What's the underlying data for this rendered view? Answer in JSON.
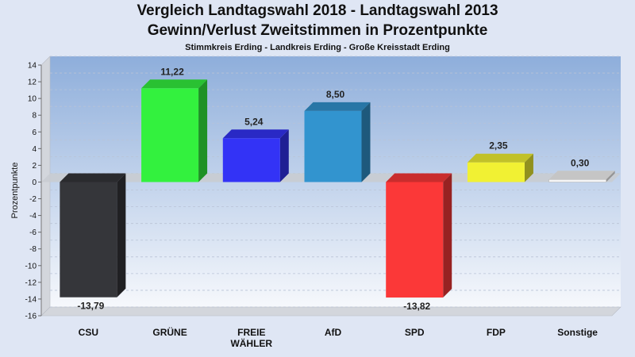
{
  "chart_data": {
    "type": "bar",
    "title": "Vergleich Landtagswahl 2018 - Landtagswahl 2013",
    "title2": "Gewinn/Verlust Zweitstimmen in Prozentpunkte",
    "subtitle": "Stimmkreis Erding - Landkreis Erding - Große Kreisstadt Erding",
    "xlabel": "",
    "ylabel": "Prozentpunkte",
    "ylim": [
      -16,
      14
    ],
    "yticks": [
      14,
      12,
      10,
      8,
      6,
      4,
      2,
      0,
      -2,
      -4,
      -6,
      -8,
      -10,
      -12,
      -14,
      -16
    ],
    "grid": true,
    "categories": [
      "CSU",
      "GRÜNE",
      "FREIE WÄHLER",
      "AfD",
      "SPD",
      "FDP",
      "Sonstige"
    ],
    "category_lines": [
      [
        "CSU"
      ],
      [
        "GRÜNE"
      ],
      [
        "FREIE",
        "WÄHLER"
      ],
      [
        "AfD"
      ],
      [
        "SPD"
      ],
      [
        "FDP"
      ],
      [
        "Sonstige"
      ]
    ],
    "values": [
      -13.79,
      11.22,
      5.24,
      8.5,
      -13.82,
      2.35,
      0.3
    ],
    "value_labels": [
      "-13,79",
      "11,22",
      "5,24",
      "8,50",
      "-13,82",
      "2,35",
      "0,30"
    ],
    "colors": [
      "#35363a",
      "#33f13e",
      "#3333f6",
      "#3294cf",
      "#fb3838",
      "#f1f133",
      "#f6f6f6"
    ]
  }
}
